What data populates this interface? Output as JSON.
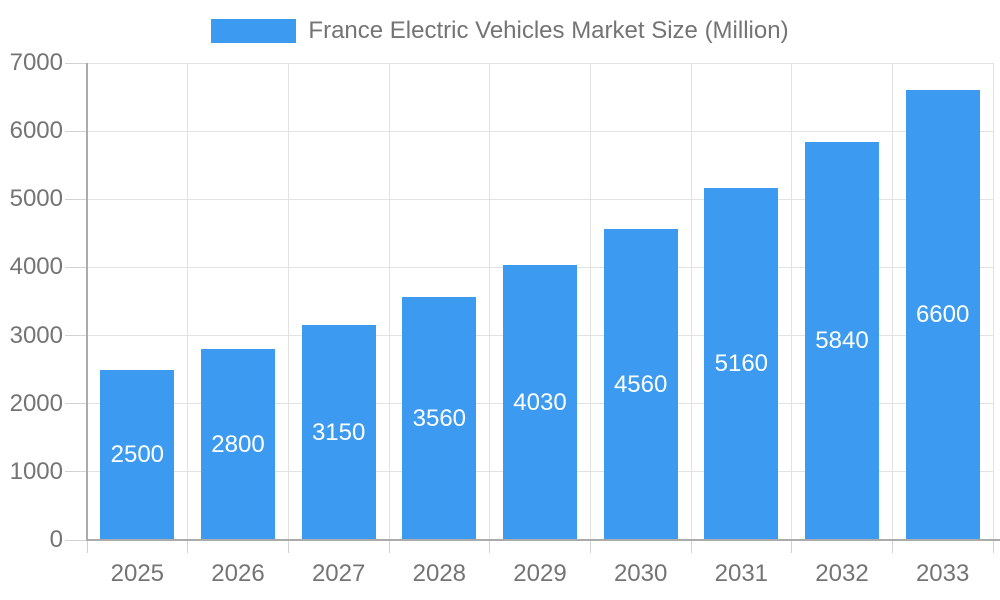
{
  "chart_data": {
    "type": "bar",
    "title": "France Electric Vehicles Market Size (Million)",
    "legend": {
      "position": "top",
      "label": "France Electric Vehicles Market Size (Million)"
    },
    "categories": [
      "2025",
      "2026",
      "2027",
      "2028",
      "2029",
      "2030",
      "2031",
      "2032",
      "2033"
    ],
    "values": [
      2500,
      2800,
      3150,
      3560,
      4030,
      4560,
      5160,
      5840,
      6600
    ],
    "value_labels_shown": true,
    "xlabel": "",
    "ylabel": "",
    "ylim": [
      0,
      7000
    ],
    "ytick_step": 1000,
    "ytick_labels": [
      "0",
      "1000",
      "2000",
      "3000",
      "4000",
      "5000",
      "6000",
      "7000"
    ],
    "grid": true
  },
  "colors": {
    "background": "#FFFFFF",
    "bar": "#3C9BF0",
    "axis_line": "#ABABAB",
    "gridline": "#E2E2E2",
    "tick": "#D2D2D2",
    "label_text": "#747474",
    "value_label_text": "#FFFFFF"
  }
}
